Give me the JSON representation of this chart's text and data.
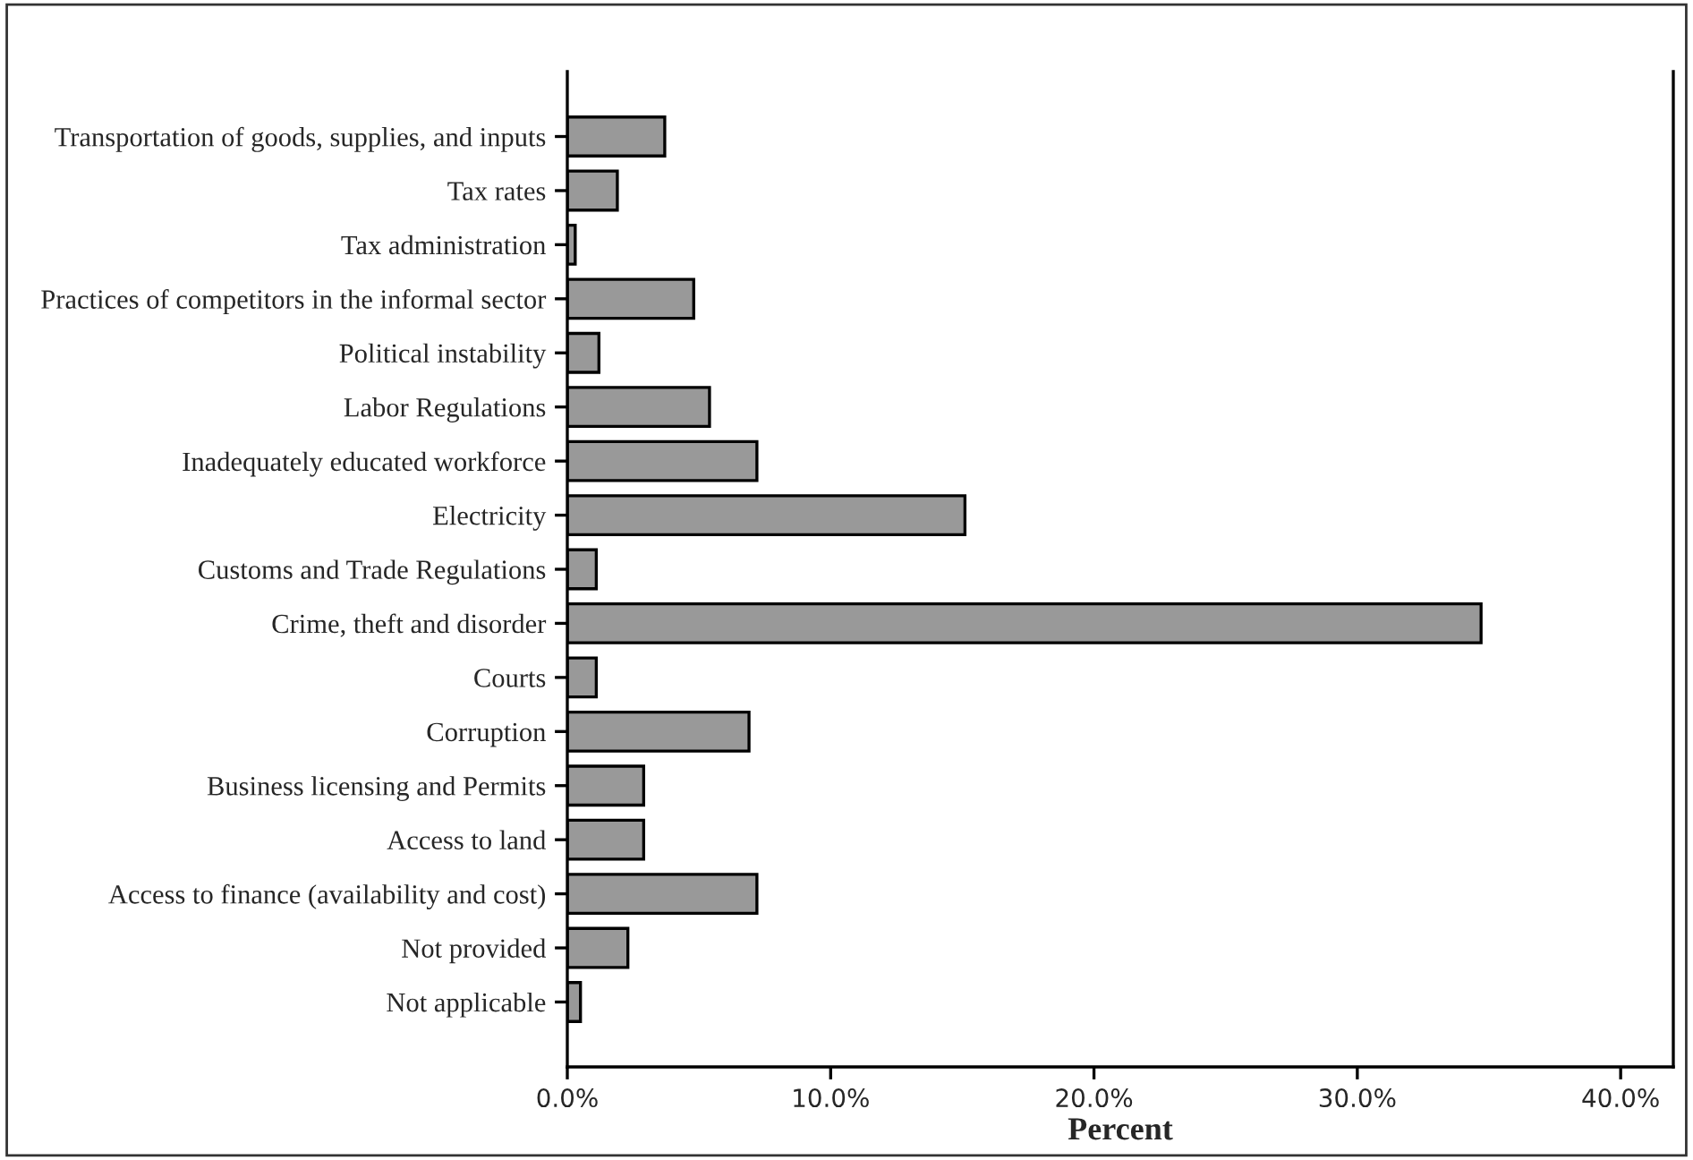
{
  "chart_data": {
    "type": "bar",
    "orientation": "horizontal",
    "xlabel": "Percent",
    "categories": [
      "Transportation of goods, supplies, and inputs",
      "Tax rates",
      "Tax administration",
      "Practices of competitors in the informal sector",
      "Political instability",
      "Labor Regulations",
      "Inadequately educated workforce",
      "Electricity",
      "Customs and Trade Regulations",
      "Crime, theft and disorder",
      "Courts",
      "Corruption",
      "Business licensing and Permits",
      "Access to land",
      "Access to finance (availability and cost)",
      "Not provided",
      "Not applicable"
    ],
    "values": [
      3.7,
      1.9,
      0.3,
      4.8,
      1.2,
      5.4,
      7.2,
      15.1,
      1.1,
      34.7,
      1.1,
      6.9,
      2.9,
      2.9,
      7.2,
      2.3,
      0.5
    ],
    "color": "#999999",
    "xlim": [
      0,
      42
    ],
    "xticks": [
      {
        "value": 0,
        "label": "0.0%"
      },
      {
        "value": 10,
        "label": "10.0%"
      },
      {
        "value": 20,
        "label": "20.0%"
      },
      {
        "value": 30,
        "label": "30.0%"
      },
      {
        "value": 40,
        "label": "40.0%"
      }
    ],
    "grid": false,
    "legend": false
  }
}
